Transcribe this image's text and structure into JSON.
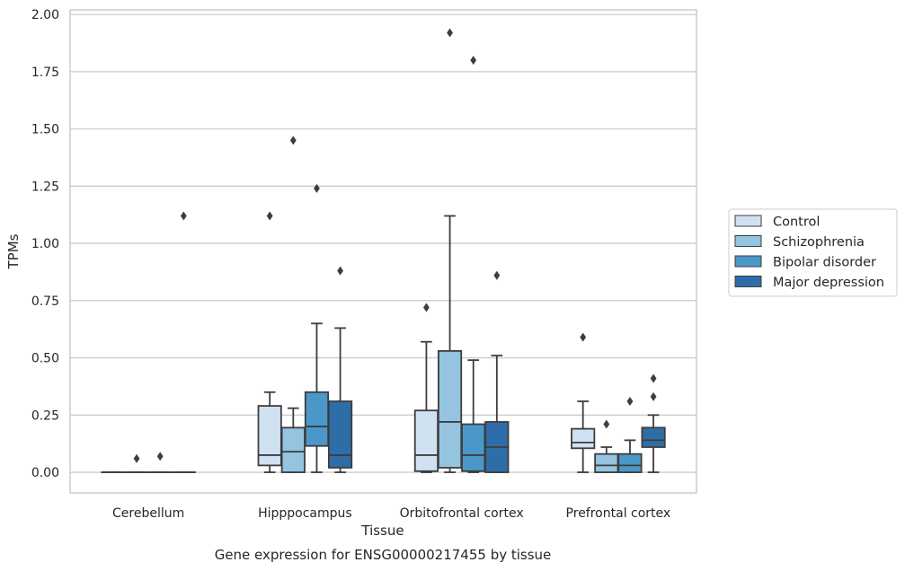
{
  "chart_data": {
    "type": "box",
    "title": "Gene expression for ENSG00000217455 by tissue",
    "xlabel": "Tissue",
    "ylabel": "TPMs",
    "ylim": [
      -0.09,
      2.02
    ],
    "yticks": [
      "0.00",
      "0.25",
      "0.50",
      "0.75",
      "1.00",
      "1.25",
      "1.50",
      "1.75",
      "2.00"
    ],
    "grid": true,
    "legend_position": "right",
    "categories": [
      "Cerebellum",
      "Hipppocampus",
      "Orbitofrontal cortex",
      "Prefrontal cortex"
    ],
    "series": [
      {
        "name": "Control",
        "color": "#d0e1f2",
        "boxes": [
          {
            "q1": 0.0,
            "median": 0.0,
            "q3": 0.0,
            "whislo": 0.0,
            "whishi": 0.0,
            "fliers": []
          },
          {
            "q1": 0.03,
            "median": 0.075,
            "q3": 0.29,
            "whislo": 0.0,
            "whishi": 0.35,
            "fliers": [
              1.12
            ]
          },
          {
            "q1": 0.005,
            "median": 0.075,
            "q3": 0.27,
            "whislo": 0.0,
            "whishi": 0.57,
            "fliers": [
              0.72
            ]
          },
          {
            "q1": 0.105,
            "median": 0.13,
            "q3": 0.19,
            "whislo": 0.0,
            "whishi": 0.31,
            "fliers": [
              0.59
            ]
          }
        ]
      },
      {
        "name": "Schizophrenia",
        "color": "#94c4df",
        "boxes": [
          {
            "q1": 0.0,
            "median": 0.0,
            "q3": 0.0,
            "whislo": 0.0,
            "whishi": 0.0,
            "fliers": [
              0.06
            ]
          },
          {
            "q1": 0.0,
            "median": 0.09,
            "q3": 0.195,
            "whislo": 0.0,
            "whishi": 0.28,
            "fliers": [
              1.45
            ]
          },
          {
            "q1": 0.02,
            "median": 0.22,
            "q3": 0.53,
            "whislo": 0.0,
            "whishi": 1.12,
            "fliers": [
              1.92
            ]
          },
          {
            "q1": 0.0,
            "median": 0.03,
            "q3": 0.08,
            "whislo": 0.0,
            "whishi": 0.11,
            "fliers": [
              0.21
            ]
          }
        ]
      },
      {
        "name": "Bipolar disorder",
        "color": "#4a98c9",
        "boxes": [
          {
            "q1": 0.0,
            "median": 0.0,
            "q3": 0.0,
            "whislo": 0.0,
            "whishi": 0.0,
            "fliers": [
              0.07
            ]
          },
          {
            "q1": 0.115,
            "median": 0.2,
            "q3": 0.35,
            "whislo": 0.0,
            "whishi": 0.65,
            "fliers": [
              1.24
            ]
          },
          {
            "q1": 0.005,
            "median": 0.075,
            "q3": 0.21,
            "whislo": 0.0,
            "whishi": 0.49,
            "fliers": [
              1.8
            ]
          },
          {
            "q1": 0.0,
            "median": 0.03,
            "q3": 0.08,
            "whislo": 0.0,
            "whishi": 0.14,
            "fliers": [
              0.31
            ]
          }
        ]
      },
      {
        "name": "Major depression",
        "color": "#2e6ea8",
        "boxes": [
          {
            "q1": 0.0,
            "median": 0.0,
            "q3": 0.0,
            "whislo": 0.0,
            "whishi": 0.0,
            "fliers": [
              1.12
            ]
          },
          {
            "q1": 0.02,
            "median": 0.075,
            "q3": 0.31,
            "whislo": 0.0,
            "whishi": 0.63,
            "fliers": [
              0.88
            ]
          },
          {
            "q1": 0.0,
            "median": 0.11,
            "q3": 0.22,
            "whislo": 0.0,
            "whishi": 0.51,
            "fliers": [
              0.86
            ]
          },
          {
            "q1": 0.11,
            "median": 0.14,
            "q3": 0.195,
            "whislo": 0.0,
            "whishi": 0.25,
            "fliers": [
              0.33,
              0.41
            ]
          }
        ]
      }
    ]
  }
}
